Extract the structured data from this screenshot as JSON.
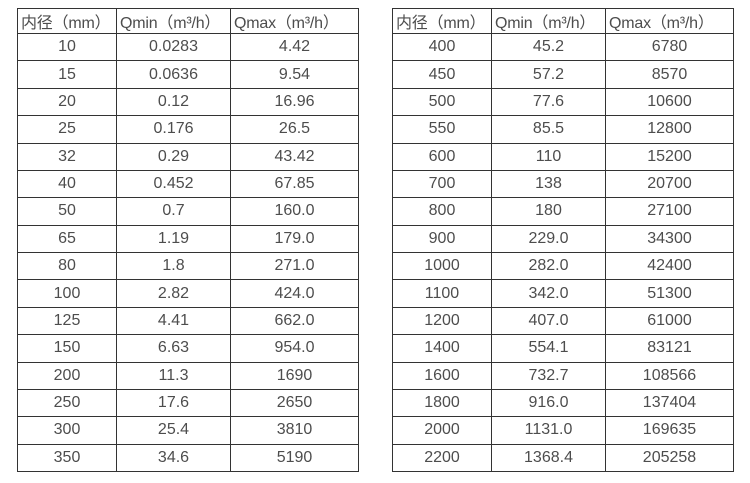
{
  "colors": {
    "background": "#ffffff",
    "border": "#333333",
    "text": "#4d4d4d"
  },
  "tables": [
    {
      "name": "flow-spec-table-small-diameters",
      "headers": [
        "内径（mm）",
        "Qmin（m³/h）",
        "Qmax（m³/h）"
      ],
      "rows": [
        [
          "10",
          "0.0283",
          "4.42"
        ],
        [
          "15",
          "0.0636",
          "9.54"
        ],
        [
          "20",
          "0.12",
          "16.96"
        ],
        [
          "25",
          "0.176",
          "26.5"
        ],
        [
          "32",
          "0.29",
          "43.42"
        ],
        [
          "40",
          "0.452",
          "67.85"
        ],
        [
          "50",
          "0.7",
          "160.0"
        ],
        [
          "65",
          "1.19",
          "179.0"
        ],
        [
          "80",
          "1.8",
          "271.0"
        ],
        [
          "100",
          "2.82",
          "424.0"
        ],
        [
          "125",
          "4.41",
          "662.0"
        ],
        [
          "150",
          "6.63",
          "954.0"
        ],
        [
          "200",
          "11.3",
          "1690"
        ],
        [
          "250",
          "17.6",
          "2650"
        ],
        [
          "300",
          "25.4",
          "3810"
        ],
        [
          "350",
          "34.6",
          "5190"
        ]
      ]
    },
    {
      "name": "flow-spec-table-large-diameters",
      "headers": [
        "内径（mm）",
        "Qmin（m³/h）",
        "Qmax（m³/h）"
      ],
      "rows": [
        [
          "400",
          "45.2",
          "6780"
        ],
        [
          "450",
          "57.2",
          "8570"
        ],
        [
          "500",
          "77.6",
          "10600"
        ],
        [
          "550",
          "85.5",
          "12800"
        ],
        [
          "600",
          "110",
          "15200"
        ],
        [
          "700",
          "138",
          "20700"
        ],
        [
          "800",
          "180",
          "27100"
        ],
        [
          "900",
          "229.0",
          "34300"
        ],
        [
          "1000",
          "282.0",
          "42400"
        ],
        [
          "1100",
          "342.0",
          "51300"
        ],
        [
          "1200",
          "407.0",
          "61000"
        ],
        [
          "1400",
          "554.1",
          "83121"
        ],
        [
          "1600",
          "732.7",
          "108566"
        ],
        [
          "1800",
          "916.0",
          "137404"
        ],
        [
          "2000",
          "1131.0",
          "169635"
        ],
        [
          "2200",
          "1368.4",
          "205258"
        ]
      ]
    }
  ]
}
